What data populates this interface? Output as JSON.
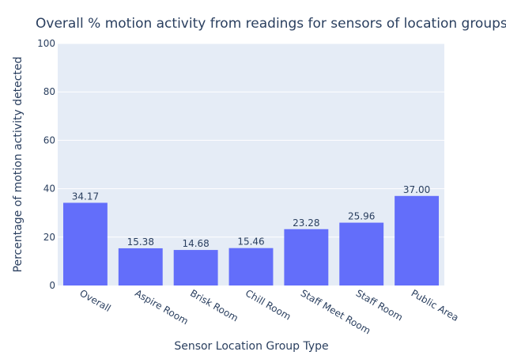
{
  "chart_data": {
    "type": "bar",
    "title": "Overall % motion activity from readings for sensors of location groups",
    "xlabel": "Sensor Location Group Type",
    "ylabel": "Percentage of motion activity detected",
    "categories": [
      "Overall",
      "Aspire Room",
      "Brisk Room",
      "Chill Room",
      "Staff Meet Room",
      "Staff Room",
      "Public Area"
    ],
    "values": [
      34.17,
      15.38,
      14.68,
      15.46,
      23.28,
      25.96,
      37.0
    ],
    "value_labels": [
      "34.17",
      "15.38",
      "14.68",
      "15.46",
      "23.28",
      "25.96",
      "37.00"
    ],
    "ylim": [
      0,
      100
    ],
    "yticks": [
      0,
      20,
      40,
      60,
      80,
      100
    ],
    "ytick_labels": [
      "0",
      "20",
      "40",
      "60",
      "80",
      "100"
    ],
    "grid": true,
    "colors": {
      "bar": "#636efa",
      "plot_bg": "#e5ecf6",
      "grid": "#ffffff",
      "text": "#2a3f5f"
    }
  }
}
